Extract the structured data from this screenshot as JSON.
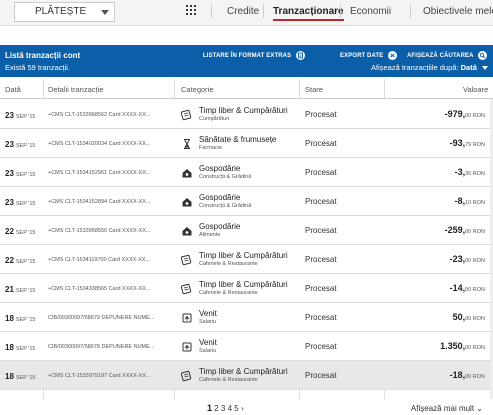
{
  "nav": {
    "pay_label": "PLĂTEȘTE",
    "items": [
      "Credite",
      "Tranzacționare",
      "Economii",
      "Obiectivele mele"
    ]
  },
  "header": {
    "title": "Listă tranzacții cont",
    "count": "Există 59 tranzacții.",
    "extras_label": "LISTARE ÎN FORMAT EXTRAS",
    "export_label": "EXPORT DATE",
    "search_label": "AFIȘEAZĂ CĂUTAREA",
    "sort_prefix": "Afișează tranzacțiile după:",
    "sort_value": "Dată"
  },
  "table": {
    "headers": [
      "Dată",
      "Detalii tranzacție",
      "Categorie",
      "Stare",
      "Valoare"
    ],
    "rows": [
      {
        "day": "23",
        "month": "SEP '15",
        "detail": "+CMS CLT-1533968562 Card XXXX-XX...",
        "icon": "theater-icon",
        "cat": "Timp liber & Cumpărături",
        "sub": "Cumpărături",
        "state": "Procesat",
        "amount": "-979,",
        "dec": "00 RON"
      },
      {
        "day": "23",
        "month": "SEP '15",
        "detail": "+CMS CLT-1534020034 Card XXXX-XX...",
        "icon": "hourglass-icon",
        "cat": "Sănătate & frumusețe",
        "sub": "Farmacie",
        "state": "Procesat",
        "amount": "-93,",
        "dec": "79 RON"
      },
      {
        "day": "23",
        "month": "SEP '15",
        "detail": "+CMS CLT-1534152961 Card XXXX-XX...",
        "icon": "household-icon",
        "cat": "Gospodărie",
        "sub": "Construcții & Grădină",
        "state": "Procesat",
        "amount": "-3,",
        "dec": "30 RON"
      },
      {
        "day": "23",
        "month": "SEP '15",
        "detail": "+CMS CLT-1534152894 Card XXXX-XX...",
        "icon": "household-icon",
        "cat": "Gospodărie",
        "sub": "Construcții & Grădină",
        "state": "Procesat",
        "amount": "-8,",
        "dec": "10 RON"
      },
      {
        "day": "22",
        "month": "SEP '15",
        "detail": "+CMS CLT-1533968550 Card XXXX-XX...",
        "icon": "household-icon",
        "cat": "Gospodărie",
        "sub": "Alimente",
        "state": "Procesat",
        "amount": "-259,",
        "dec": "00 RON"
      },
      {
        "day": "22",
        "month": "SEP '15",
        "detail": "+CMS CLT-1534119700 Card XXXX-XX...",
        "icon": "theater-icon",
        "cat": "Timp liber & Cumpărături",
        "sub": "Cafenele & Restaurante",
        "state": "Procesat",
        "amount": "-23,",
        "dec": "00 RON"
      },
      {
        "day": "21",
        "month": "SEP '15",
        "detail": "+CMS CLT-1534338565 Card XXXX-XX...",
        "icon": "theater-icon",
        "cat": "Timp liber & Cumpărături",
        "sub": "Cafenele & Restaurante",
        "state": "Procesat",
        "amount": "-14,",
        "dec": "50 RON"
      },
      {
        "day": "18",
        "month": "SEP '15",
        "detail": "CIB/00300097/58679 DEPUNERE NUME...",
        "icon": "income-icon",
        "cat": "Venit",
        "sub": "Salariu",
        "state": "Procesat",
        "amount": "50,",
        "dec": "00 RON"
      },
      {
        "day": "18",
        "month": "SEP '15",
        "detail": "CIB/00300097/58678 DEPUNERE NUME...",
        "icon": "income-icon",
        "cat": "Venit",
        "sub": "Salariu",
        "state": "Procesat",
        "amount": "1.350,",
        "dec": "00 RON"
      },
      {
        "day": "18",
        "month": "SEP '15",
        "detail": "+CMS CLT-1533975197 Card XXXX-XX...",
        "icon": "theater-icon",
        "cat": "Timp liber & Cumpărături",
        "sub": "Cafenele & Restaurante",
        "state": "Procesat",
        "amount": "-18,",
        "dec": "00 RON"
      }
    ]
  },
  "pagination": {
    "current": "1",
    "others": "2 3 4 5",
    "next": "›",
    "more_label": "Afișează mai mult",
    "more_chevron": "⌄"
  },
  "colors": {
    "header_bg": "#0b5ea8",
    "active_underline": "#c0262c",
    "highlight_row": "#e8e8e8"
  }
}
